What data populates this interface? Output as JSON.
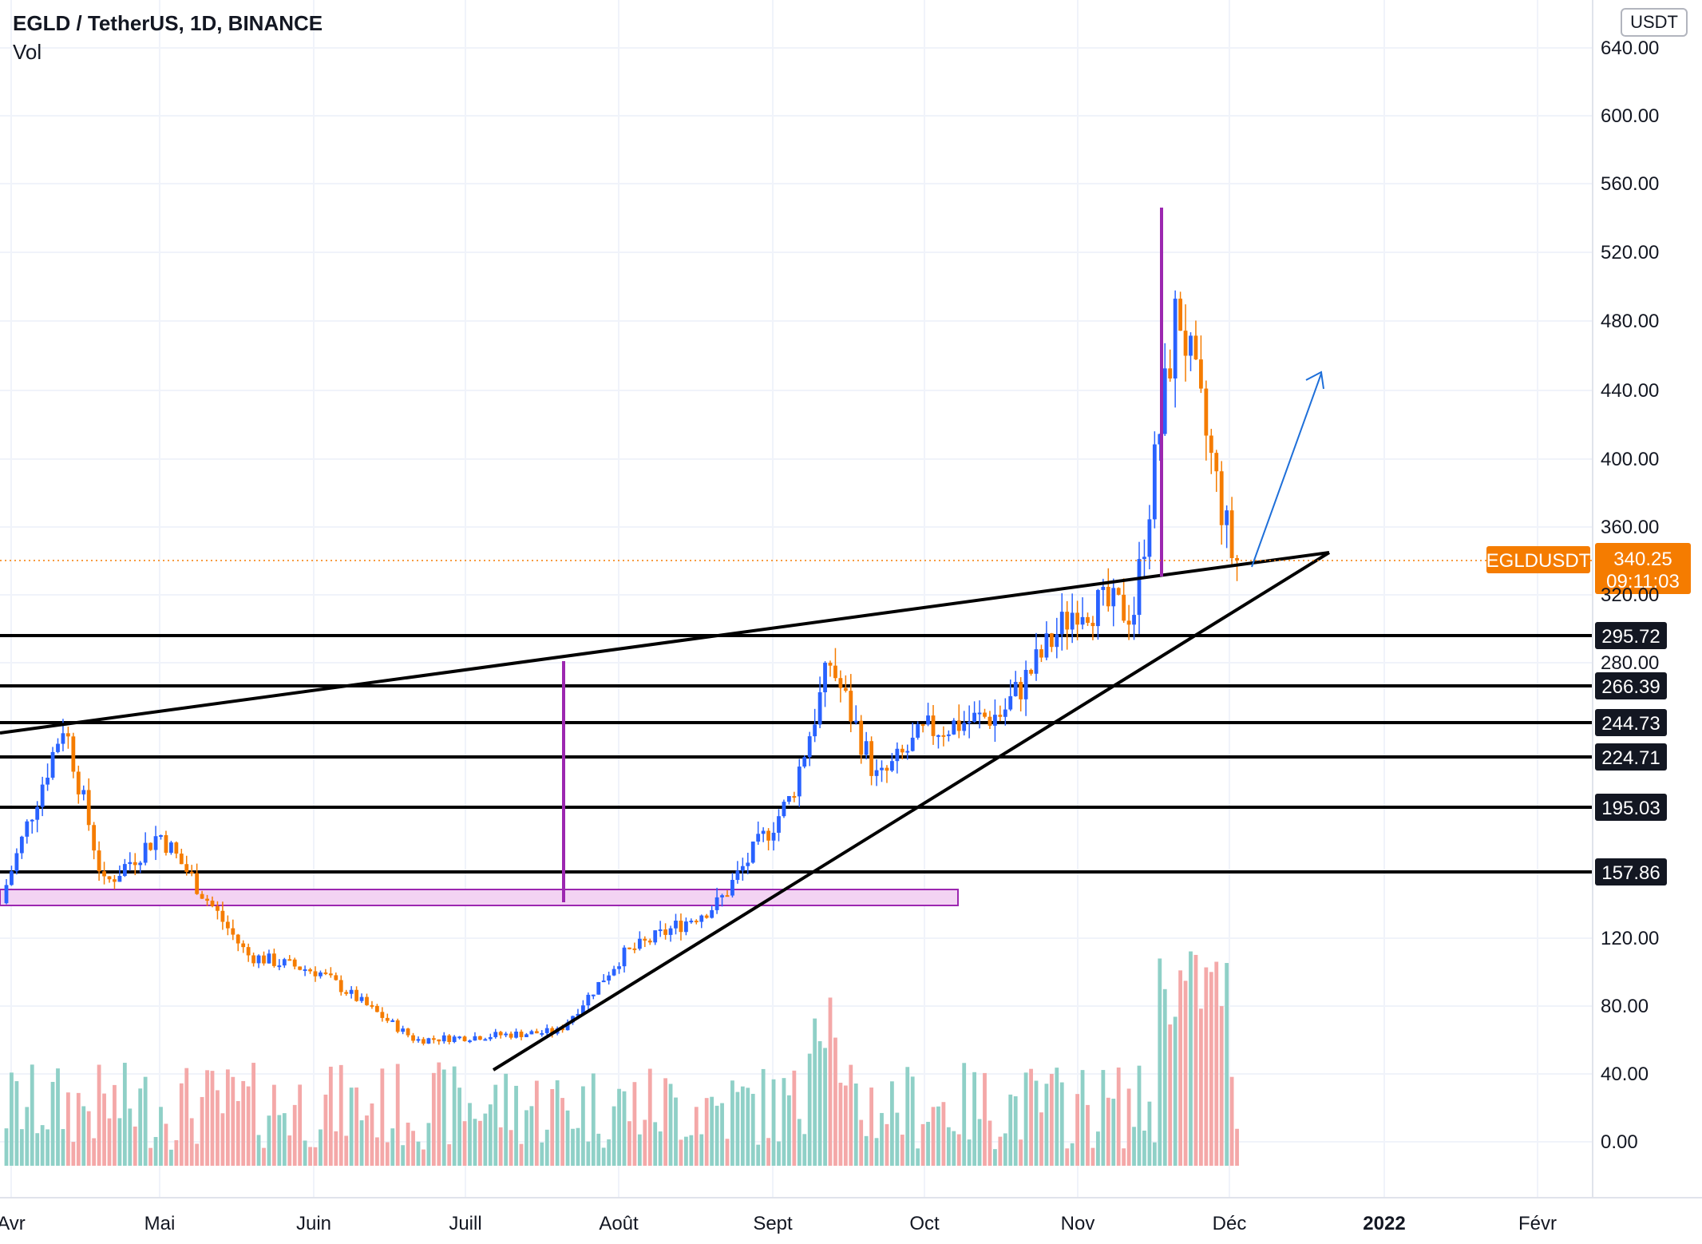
{
  "header": {
    "symbol_line": "EGLD / TetherUS, 1D, BINANCE",
    "indicator": "Vol",
    "currency": "USDT"
  },
  "price_axis": {
    "ticks": [
      "640.00",
      "600.00",
      "560.00",
      "520.00",
      "480.00",
      "440.00",
      "400.00",
      "360.00",
      "320.00",
      "280.00",
      "120.00",
      "80.00",
      "40.00",
      "0.00"
    ]
  },
  "time_axis": {
    "labels": [
      "Avr",
      "Mai",
      "Juin",
      "Juill",
      "Août",
      "Sept",
      "Oct",
      "Nov",
      "Déc",
      "2022",
      "Févr"
    ]
  },
  "last_price": {
    "symbol_tag": "EGLDUSDT",
    "value": "340.25",
    "countdown": "09:11:03",
    "color": "#f57c00"
  },
  "levels": [
    "295.72",
    "266.39",
    "244.73",
    "224.71",
    "195.03",
    "157.86"
  ],
  "colors": {
    "up": "#2962ff",
    "down": "#f57c00",
    "vol_up": "#8fd0c7",
    "vol_down": "#f4a8a8",
    "purple": "#9c27b0",
    "zone_fill": "#f3d3f3",
    "arrow": "#1e6fd9"
  },
  "chart_data": {
    "type": "candlestick",
    "title": "EGLD / TetherUS, 1D, BINANCE",
    "ylim": [
      0,
      640
    ],
    "series_keypoints": [
      {
        "date": "Apr",
        "close": 140
      },
      {
        "date": "mid-Apr",
        "close": 245
      },
      {
        "date": "late-Apr",
        "close": 150
      },
      {
        "date": "May",
        "close": 180
      },
      {
        "date": "late-May",
        "close": 110
      },
      {
        "date": "Jun",
        "close": 100
      },
      {
        "date": "early-Jul",
        "close": 60
      },
      {
        "date": "late-Jul",
        "close": 65
      },
      {
        "date": "Aug",
        "close": 110
      },
      {
        "date": "late-Aug",
        "close": 140
      },
      {
        "date": "early-Sep",
        "close": 200
      },
      {
        "date": "mid-Sep",
        "close": 280
      },
      {
        "date": "late-Sep",
        "close": 210
      },
      {
        "date": "Oct",
        "close": 240
      },
      {
        "date": "late-Oct",
        "close": 250
      },
      {
        "date": "Nov",
        "close": 315
      },
      {
        "date": "mid-Nov",
        "close": 310
      },
      {
        "date": "late-Nov",
        "close": 490
      },
      {
        "date": "Dec",
        "close": 340.25
      }
    ]
  }
}
